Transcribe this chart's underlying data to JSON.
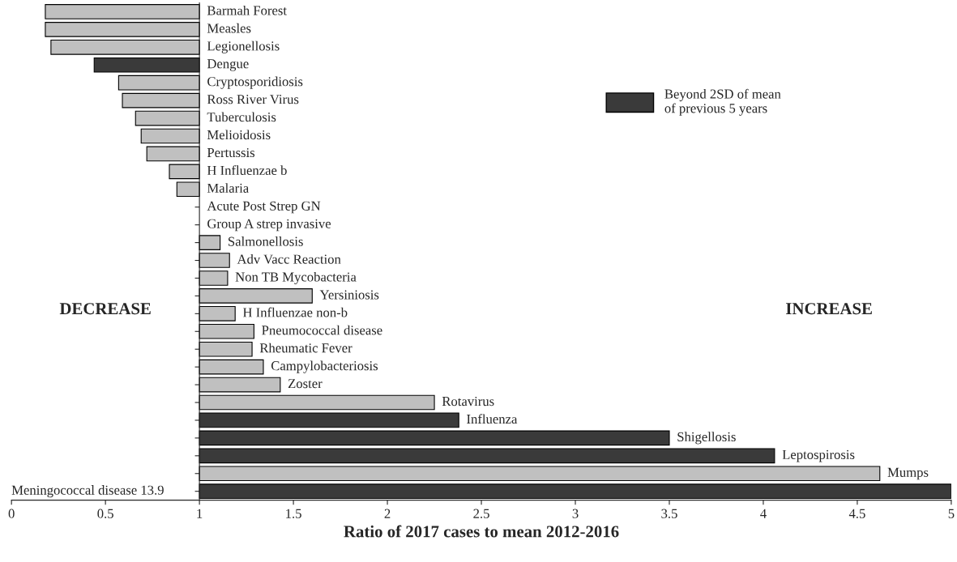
{
  "chart_data": {
    "type": "bar",
    "orientation": "horizontal",
    "xlabel": "Ratio of 2017 cases to mean 2012-2016",
    "categories": [
      "Barmah Forest",
      "Measles",
      "Legionellosis",
      "Dengue",
      "Cryptosporidiosis",
      "Ross River Virus",
      "Tuberculosis",
      "Melioidosis",
      "Pertussis",
      "H Influenzae b",
      "Malaria",
      "Acute Post Strep GN",
      "Group A strep invasive",
      "Salmonellosis",
      "Adv Vacc Reaction",
      "Non TB Mycobacteria",
      "Yersiniosis",
      "H Influenzae non-b",
      "Pneumococcal disease",
      "Rheumatic Fever",
      "Campylobacteriosis",
      "Zoster",
      "Rotavirus",
      "Influenza",
      "Shigellosis",
      "Leptospirosis",
      "Mumps",
      "Meningococcal disease 13.9"
    ],
    "series": [
      {
        "color": "#c0c0c0",
        "base": [
          1,
          1,
          1,
          null,
          1,
          1,
          1,
          1,
          1,
          1,
          1,
          null,
          null,
          1,
          1,
          1,
          1,
          1,
          1,
          1,
          1,
          1,
          1,
          null,
          null,
          null,
          1,
          null
        ],
        "values": [
          -0.82,
          -0.82,
          -0.79,
          null,
          -0.43,
          -0.41,
          -0.34,
          -0.31,
          -0.28,
          -0.16,
          -0.12,
          null,
          null,
          0.11,
          0.16,
          0.15,
          0.6,
          0.19,
          0.29,
          0.28,
          0.34,
          0.43,
          1.25,
          null,
          null,
          null,
          3.62,
          null
        ]
      },
      {
        "name": "Beyond 2SD of mean\nof previous 5 years",
        "color": "#3a3a3a",
        "base": [
          null,
          null,
          null,
          1,
          null,
          null,
          null,
          null,
          null,
          null,
          null,
          null,
          null,
          null,
          null,
          null,
          null,
          null,
          null,
          null,
          null,
          null,
          null,
          1,
          1,
          1,
          null,
          1
        ],
        "values": [
          null,
          null,
          null,
          -0.56,
          null,
          null,
          null,
          null,
          null,
          null,
          null,
          null,
          null,
          null,
          null,
          null,
          null,
          null,
          null,
          null,
          null,
          null,
          null,
          1.38,
          2.5,
          3.06,
          null,
          4
        ]
      }
    ],
    "xlim": [
      0,
      5
    ],
    "xticks": [
      0,
      0.5,
      1,
      1.5,
      2,
      2.5,
      3,
      3.5,
      4,
      4.5,
      5
    ],
    "legend": "top right",
    "grid": false,
    "annotations": [
      "DECREASE",
      "INCREASE"
    ]
  }
}
